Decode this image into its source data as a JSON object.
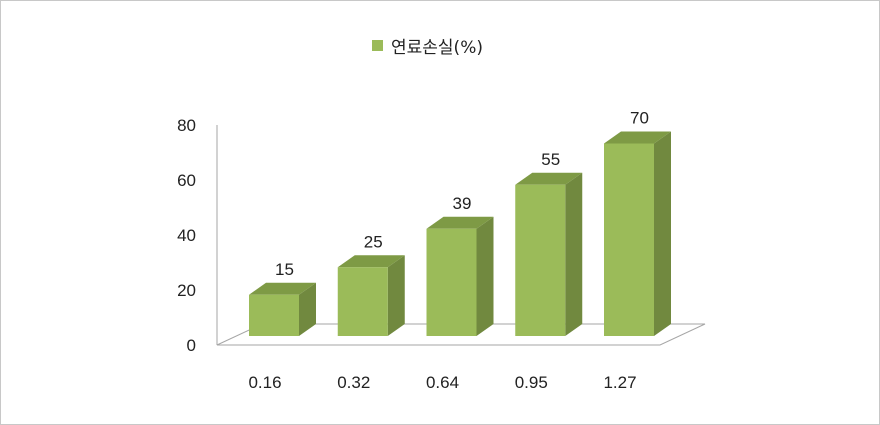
{
  "chart_data": {
    "type": "bar",
    "categories": [
      "0.16",
      "0.32",
      "0.64",
      "0.95",
      "1.27"
    ],
    "series": [
      {
        "name": "연료손실(%)",
        "values": [
          15,
          25,
          39,
          55,
          70
        ]
      }
    ],
    "data_labels": [
      "15",
      "25",
      "39",
      "55",
      "70"
    ],
    "y_ticks": [
      "0",
      "20",
      "40",
      "60",
      "80"
    ],
    "ylim": [
      0,
      80
    ],
    "xlabel": "",
    "ylabel": "",
    "grid": false,
    "legend_position": "top-center",
    "style": "3d-column"
  },
  "colors": {
    "bar_front": "#9bbb59",
    "bar_side": "#71893f",
    "bar_top": "#7e9a45",
    "floor": "#ffffff",
    "axis": "#a6a6a6"
  }
}
